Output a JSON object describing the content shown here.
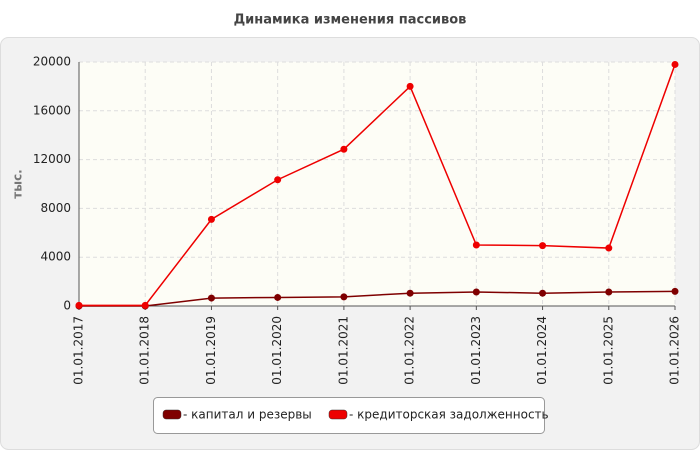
{
  "chart_data": {
    "type": "line",
    "title": "Динамика изменения пассивов",
    "y_label": "тыс.",
    "categories": [
      "01.01.2017",
      "01.01.2018",
      "01.01.2019",
      "01.01.2020",
      "01.01.2021",
      "01.01.2022",
      "01.01.2023",
      "01.01.2024",
      "01.01.2025",
      "01.01.2026"
    ],
    "series": [
      {
        "name": "- капитал и резервы",
        "color": "#7f0000",
        "values": [
          0,
          0,
          650,
          700,
          750,
          1050,
          1150,
          1050,
          1150,
          1200
        ]
      },
      {
        "name": "- кредиторская задолженность",
        "color": "#ee0000",
        "values": [
          50,
          50,
          7100,
          10350,
          12850,
          18000,
          5000,
          4950,
          4750,
          19800
        ]
      }
    ],
    "ylim": [
      0,
      20000
    ],
    "yticks": [
      0,
      4000,
      8000,
      12000,
      16000,
      20000
    ],
    "grid": true,
    "legend": "bottom"
  }
}
